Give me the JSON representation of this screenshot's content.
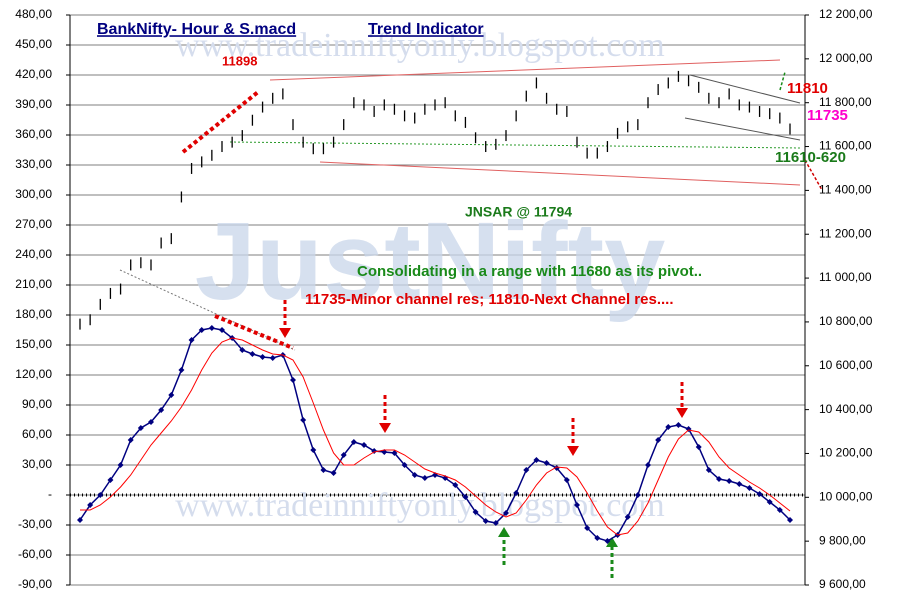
{
  "chart_data": {
    "type": "line",
    "title": "BankNifty- Hour & S.macd",
    "subtitle": "Trend Indicator",
    "annotations": [
      "11898",
      "11810",
      "11735",
      "11610-620",
      "JNSAR @ 11794",
      "Consolidating in a range with 11680 as its pivot..",
      "11735-Minor channel res; 11810-Next Channel res...."
    ],
    "watermarks": [
      "www.tradeinniftyonly.blogspot.com",
      "JustNifty"
    ],
    "ylim": [
      -90,
      480
    ],
    "yticks": [
      {
        "value": 480,
        "label": "480,00"
      },
      {
        "value": 450,
        "label": "450,00"
      },
      {
        "value": 420,
        "label": "420,00"
      },
      {
        "value": 390,
        "label": "390,00"
      },
      {
        "value": 360,
        "label": "360,00"
      },
      {
        "value": 330,
        "label": "330,00"
      },
      {
        "value": 300,
        "label": "300,00"
      },
      {
        "value": 270,
        "label": "270,00"
      },
      {
        "value": 240,
        "label": "240,00"
      },
      {
        "value": 210,
        "label": "210,00"
      },
      {
        "value": 180,
        "label": "180,00"
      },
      {
        "value": 150,
        "label": "150,00"
      },
      {
        "value": 120,
        "label": "120,00"
      },
      {
        "value": 90,
        "label": "90,00"
      },
      {
        "value": 60,
        "label": "60,00"
      },
      {
        "value": 30,
        "label": "30,00"
      },
      {
        "value": 0,
        "label": "-"
      },
      {
        "value": -30,
        "label": "-30,00"
      },
      {
        "value": -60,
        "label": "-60,00"
      },
      {
        "value": -90,
        "label": "-90,00"
      }
    ],
    "y2lim": [
      9600,
      12200
    ],
    "y2ticks": [
      {
        "value": 12200,
        "label": "12 200,00"
      },
      {
        "value": 12000,
        "label": "12 000,00"
      },
      {
        "value": 11800,
        "label": "11 800,00"
      },
      {
        "value": 11600,
        "label": "11 600,00"
      },
      {
        "value": 11400,
        "label": "11 400,00"
      },
      {
        "value": 11200,
        "label": "11 200,00"
      },
      {
        "value": 11000,
        "label": "11 000,00"
      },
      {
        "value": 10800,
        "label": "10 800,00"
      },
      {
        "value": 10600,
        "label": "10 600,00"
      },
      {
        "value": 10400,
        "label": "10 400,00"
      },
      {
        "value": 10200,
        "label": "10 200,00"
      },
      {
        "value": 10000,
        "label": "10 000,00"
      },
      {
        "value": 9800,
        "label": "9 800,00"
      },
      {
        "value": 9600,
        "label": "9 600,00"
      }
    ],
    "grid": true,
    "series": [
      {
        "color": "#000000",
        "axis": "y2",
        "high": [
          10815,
          10835,
          10905,
          10955,
          10975,
          11085,
          11095,
          11085,
          11185,
          11205,
          11395,
          11525,
          11555,
          11585,
          11625,
          11645,
          11675,
          11745,
          11805,
          11845,
          11865,
          11725,
          11645,
          11615,
          11615,
          11645,
          11725,
          11825,
          11815,
          11785,
          11815,
          11795,
          11765,
          11755,
          11795,
          11815,
          11825,
          11765,
          11735,
          11665,
          11625,
          11635,
          11675,
          11765,
          11855,
          11915,
          11845,
          11795,
          11785,
          11645,
          11595,
          11595,
          11625,
          11685,
          11715,
          11725,
          11825,
          11885,
          11915,
          11945,
          11925,
          11895,
          11845,
          11825,
          11865,
          11815,
          11805,
          11785,
          11775,
          11755,
          11705
        ],
        "low": [
          10765,
          10785,
          10855,
          10905,
          10925,
          11035,
          11045,
          11035,
          11135,
          11155,
          11345,
          11475,
          11505,
          11535,
          11575,
          11595,
          11625,
          11695,
          11755,
          11795,
          11815,
          11675,
          11595,
          11565,
          11565,
          11595,
          11675,
          11775,
          11765,
          11735,
          11765,
          11745,
          11715,
          11705,
          11745,
          11765,
          11775,
          11715,
          11685,
          11615,
          11575,
          11585,
          11625,
          11715,
          11805,
          11865,
          11795,
          11745,
          11735,
          11595,
          11545,
          11545,
          11575,
          11635,
          11665,
          11675,
          11775,
          11835,
          11865,
          11895,
          11875,
          11845,
          11795,
          11775,
          11815,
          11765,
          11755,
          11735,
          11725,
          11705,
          11655
        ]
      },
      {
        "color": "#000080",
        "markers": true,
        "values": [
          -25,
          -10,
          0,
          15,
          30,
          55,
          67,
          73,
          85,
          100,
          125,
          155,
          165,
          167,
          165,
          157,
          145,
          141,
          138,
          137,
          140,
          115,
          75,
          45,
          25,
          22,
          40,
          53,
          50,
          44,
          43,
          42,
          30,
          20,
          17,
          20,
          17,
          10,
          -2,
          -17,
          -26,
          -28,
          -18,
          2,
          25,
          35,
          32,
          27,
          15,
          -10,
          -33,
          -43,
          -46,
          -40,
          -22,
          0,
          30,
          55,
          68,
          70,
          66,
          48,
          25,
          16,
          14,
          11,
          7,
          1,
          -7,
          -15,
          -25
        ]
      },
      {
        "color": "#ff0000",
        "markers": false,
        "values": [
          -15,
          -15,
          -10,
          -2,
          8,
          20,
          35,
          50,
          62,
          74,
          88,
          105,
          125,
          142,
          153,
          157,
          155,
          150,
          145,
          141,
          140,
          135,
          118,
          92,
          65,
          42,
          30,
          30,
          37,
          43,
          45,
          45,
          40,
          33,
          26,
          22,
          19,
          15,
          8,
          -1,
          -10,
          -17,
          -22,
          -18,
          -5,
          10,
          22,
          28,
          27,
          18,
          2,
          -16,
          -32,
          -40,
          -38,
          -26,
          -8,
          15,
          38,
          56,
          65,
          63,
          53,
          38,
          27,
          20,
          13,
          7,
          0,
          -8,
          -16
        ]
      }
    ]
  }
}
